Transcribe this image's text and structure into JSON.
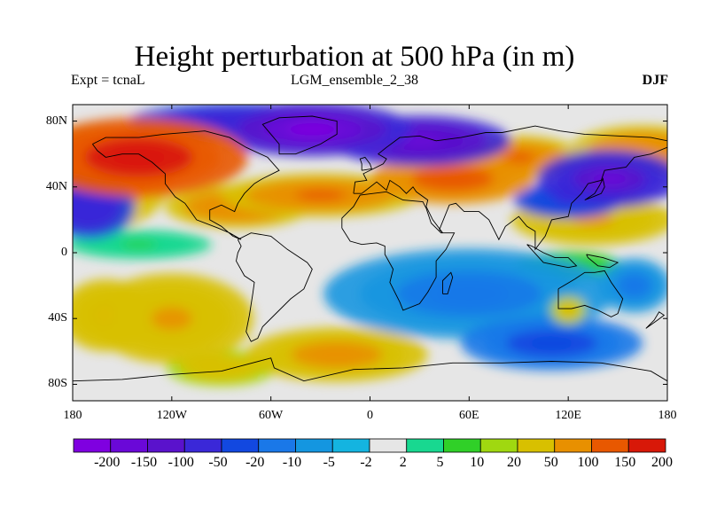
{
  "title": "Height perturbation at 500 hPa (in m)",
  "experiment": "Expt = tcnaL",
  "ensemble": "LGM_ensemble_2_38",
  "season": "DJF",
  "map": {
    "lat_ticks": [
      "80N",
      "40N",
      "0",
      "40S",
      "80S"
    ],
    "lon_ticks": [
      "180",
      "120W",
      "60W",
      "0",
      "60E",
      "120E",
      "180"
    ],
    "lat_values": [
      80,
      40,
      0,
      -40,
      -80
    ],
    "lon_values": [
      -180,
      -120,
      -60,
      0,
      60,
      120,
      180
    ],
    "lon_range": [
      -180,
      180
    ],
    "lat_range": [
      -90,
      90
    ]
  },
  "colorbar": {
    "colors": [
      "#7f00e0",
      "#6a08d8",
      "#5a12cc",
      "#3a28d8",
      "#1248e0",
      "#1a78e8",
      "#1496e0",
      "#14b4e0",
      "#e6e6e6",
      "#18d890",
      "#30d028",
      "#a0d810",
      "#d8c000",
      "#e89000",
      "#e85800",
      "#d81808"
    ],
    "labels": [
      "-200",
      "-150",
      "-100",
      "-50",
      "-20",
      "-10",
      "-5",
      "-2",
      "2",
      "5",
      "10",
      "20",
      "50",
      "100",
      "150",
      "200"
    ]
  },
  "chart_data": {
    "type": "heatmap",
    "title": "Height perturbation at 500 hPa (in m)",
    "levels": [
      -200,
      -150,
      -100,
      -50,
      -20,
      -10,
      -5,
      -2,
      2,
      5,
      10,
      20,
      50,
      100,
      150,
      200
    ],
    "blobs": [
      {
        "lon": -140,
        "lat": 58,
        "value": 230,
        "rx": 60,
        "ry": 22
      },
      {
        "lon": -170,
        "lat": 45,
        "value": 80,
        "rx": 45,
        "ry": 30
      },
      {
        "lon": -80,
        "lat": 28,
        "value": 80,
        "rx": 40,
        "ry": 12
      },
      {
        "lon": -30,
        "lat": 35,
        "value": 110,
        "rx": 55,
        "ry": 12
      },
      {
        "lon": 50,
        "lat": 45,
        "value": 140,
        "rx": 45,
        "ry": 14
      },
      {
        "lon": 90,
        "lat": 58,
        "value": 100,
        "rx": 35,
        "ry": 12
      },
      {
        "lon": 165,
        "lat": 62,
        "value": 80,
        "rx": 40,
        "ry": 14
      },
      {
        "lon": 135,
        "lat": 20,
        "value": 60,
        "rx": 45,
        "ry": 14
      },
      {
        "lon": -35,
        "lat": 75,
        "value": -220,
        "rx": 55,
        "ry": 15
      },
      {
        "lon": 30,
        "lat": 68,
        "value": -180,
        "rx": 50,
        "ry": 14
      },
      {
        "lon": -80,
        "lat": 80,
        "value": -100,
        "rx": 60,
        "ry": 10
      },
      {
        "lon": 145,
        "lat": 45,
        "value": -150,
        "rx": 40,
        "ry": 16
      },
      {
        "lon": -170,
        "lat": 28,
        "value": -80,
        "rx": 25,
        "ry": 18
      },
      {
        "lon": 120,
        "lat": 32,
        "value": -60,
        "rx": 30,
        "ry": 10
      },
      {
        "lon": -120,
        "lat": -40,
        "value": 60,
        "rx": 45,
        "ry": 25
      },
      {
        "lon": -160,
        "lat": -38,
        "value": 50,
        "rx": 25,
        "ry": 20
      },
      {
        "lon": -20,
        "lat": -62,
        "value": 70,
        "rx": 50,
        "ry": 15
      },
      {
        "lon": -90,
        "lat": -70,
        "value": 40,
        "rx": 30,
        "ry": 10
      },
      {
        "lon": 60,
        "lat": -25,
        "value": -15,
        "rx": 80,
        "ry": 25
      },
      {
        "lon": 110,
        "lat": -55,
        "value": -25,
        "rx": 50,
        "ry": 15
      },
      {
        "lon": 160,
        "lat": -20,
        "value": -15,
        "rx": 20,
        "ry": 15
      },
      {
        "lon": -140,
        "lat": 5,
        "value": 5,
        "rx": 40,
        "ry": 8
      },
      {
        "lon": 120,
        "lat": -8,
        "value": 12,
        "rx": 30,
        "ry": 8
      },
      {
        "lon": 120,
        "lat": -35,
        "value": 40,
        "rx": 10,
        "ry": 8
      }
    ]
  }
}
